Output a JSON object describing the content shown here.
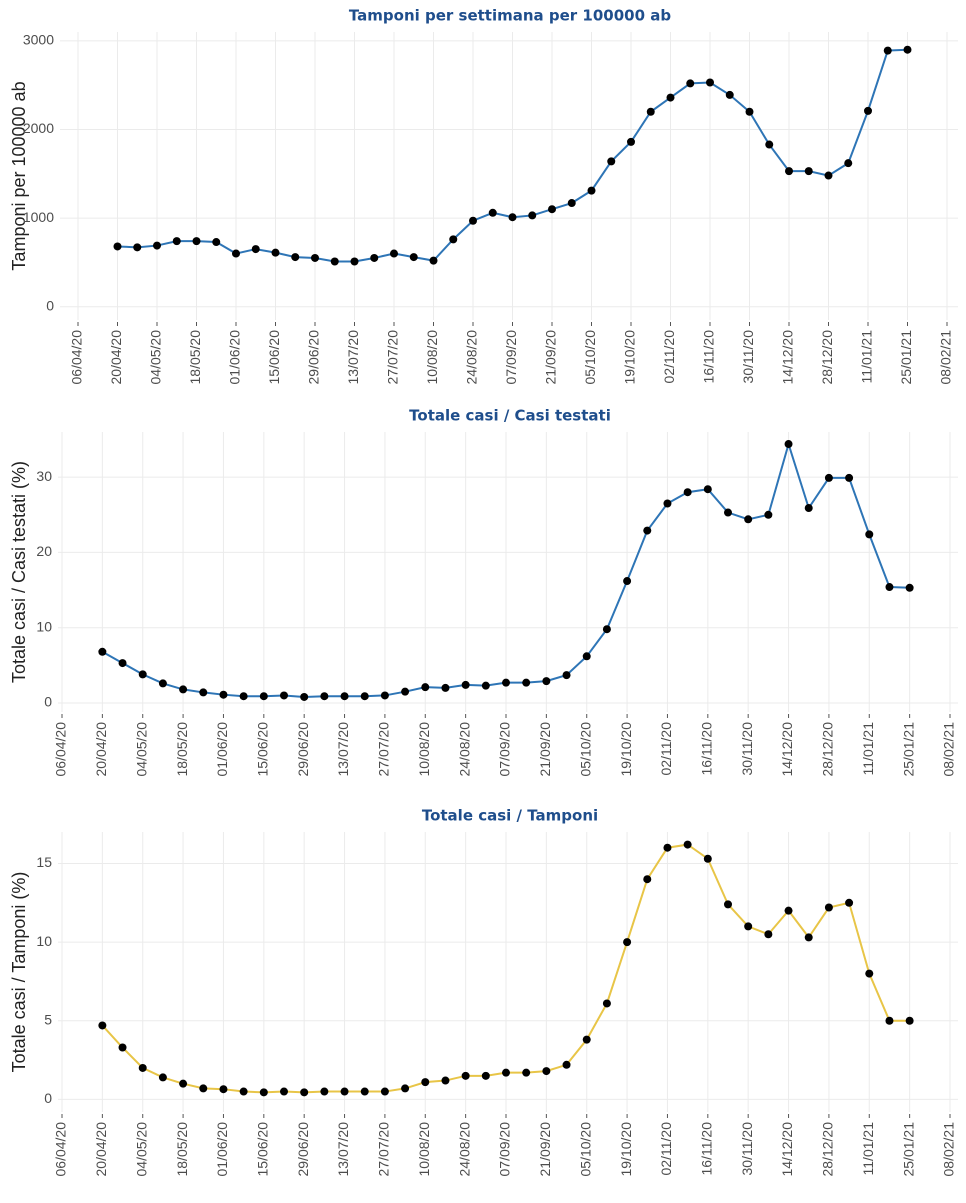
{
  "chart_data": [
    {
      "type": "line",
      "title": "Tamponi per settimana per 100000 ab",
      "y_label": "Tamponi per 100000 ab",
      "x": [
        "20/04/20",
        "27/04/20",
        "04/05/20",
        "11/05/20",
        "18/05/20",
        "25/05/20",
        "01/06/20",
        "08/06/20",
        "15/06/20",
        "22/06/20",
        "29/06/20",
        "06/07/20",
        "13/07/20",
        "20/07/20",
        "27/07/20",
        "03/08/20",
        "10/08/20",
        "17/08/20",
        "24/08/20",
        "31/08/20",
        "07/09/20",
        "14/09/20",
        "21/09/20",
        "28/09/20",
        "05/10/20",
        "12/10/20",
        "19/10/20",
        "26/10/20",
        "02/11/20",
        "09/11/20",
        "16/11/20",
        "23/11/20",
        "30/11/20",
        "07/12/20",
        "14/12/20",
        "21/12/20",
        "28/12/20",
        "04/01/21",
        "11/01/21",
        "18/01/21",
        "25/01/21"
      ],
      "series": [
        {
          "color": "#2e75b6",
          "values": [
            680,
            670,
            690,
            740,
            740,
            730,
            600,
            650,
            610,
            560,
            550,
            510,
            510,
            550,
            600,
            560,
            520,
            760,
            970,
            1060,
            1010,
            1030,
            1100,
            1170,
            1310,
            1640,
            1860,
            2200,
            2360,
            2520,
            2530,
            2390,
            2200,
            1830,
            1530,
            1530,
            1480,
            1620,
            2210,
            2890,
            2900
          ]
        }
      ],
      "xlim": [
        "06/04/20",
        "08/02/21"
      ],
      "xticks": [
        "06/04/20",
        "20/04/20",
        "04/05/20",
        "18/05/20",
        "01/06/20",
        "15/06/20",
        "29/06/20",
        "13/07/20",
        "27/07/20",
        "10/08/20",
        "24/08/20",
        "07/09/20",
        "21/09/20",
        "05/10/20",
        "19/10/20",
        "02/11/20",
        "16/11/20",
        "30/11/20",
        "14/12/20",
        "28/12/20",
        "11/01/21",
        "25/01/21",
        "08/02/21"
      ],
      "ylim": [
        -150,
        3100
      ],
      "yticks": [
        0,
        1000,
        2000,
        3000
      ],
      "grid": true
    },
    {
      "type": "line",
      "title": "Totale casi / Casi testati",
      "y_label": "Totale casi / Casi testati (%)",
      "x": [
        "20/04/20",
        "27/04/20",
        "04/05/20",
        "11/05/20",
        "18/05/20",
        "25/05/20",
        "01/06/20",
        "08/06/20",
        "15/06/20",
        "22/06/20",
        "29/06/20",
        "06/07/20",
        "13/07/20",
        "20/07/20",
        "27/07/20",
        "03/08/20",
        "10/08/20",
        "17/08/20",
        "24/08/20",
        "31/08/20",
        "07/09/20",
        "14/09/20",
        "21/09/20",
        "28/09/20",
        "05/10/20",
        "12/10/20",
        "19/10/20",
        "26/10/20",
        "02/11/20",
        "09/11/20",
        "16/11/20",
        "23/11/20",
        "30/11/20",
        "07/12/20",
        "14/12/20",
        "21/12/20",
        "28/12/20",
        "04/01/21",
        "11/01/21",
        "18/01/21",
        "25/01/21"
      ],
      "series": [
        {
          "color": "#2e75b6",
          "values": [
            6.8,
            5.3,
            3.8,
            2.6,
            1.8,
            1.4,
            1.1,
            0.9,
            0.9,
            1.0,
            0.8,
            0.9,
            0.9,
            0.9,
            1.0,
            1.5,
            2.1,
            2.0,
            2.4,
            2.3,
            2.7,
            2.7,
            2.9,
            3.7,
            6.2,
            9.8,
            16.2,
            22.9,
            26.5,
            28.0,
            28.4,
            25.3,
            24.4,
            25.0,
            34.4,
            25.9,
            29.9,
            29.9,
            22.4,
            15.4,
            15.3
          ]
        }
      ],
      "xlim": [
        "06/04/20",
        "08/02/21"
      ],
      "xticks": [
        "06/04/20",
        "20/04/20",
        "04/05/20",
        "18/05/20",
        "01/06/20",
        "15/06/20",
        "29/06/20",
        "13/07/20",
        "27/07/20",
        "10/08/20",
        "24/08/20",
        "07/09/20",
        "21/09/20",
        "05/10/20",
        "19/10/20",
        "02/11/20",
        "16/11/20",
        "30/11/20",
        "14/12/20",
        "28/12/20",
        "11/01/21",
        "25/01/21",
        "08/02/21"
      ],
      "ylim": [
        -1.2,
        36
      ],
      "yticks": [
        0,
        10,
        20,
        30
      ],
      "grid": true
    },
    {
      "type": "line",
      "title": "Totale casi / Tamponi",
      "y_label": "Totale casi / Tamponi (%)",
      "x": [
        "20/04/20",
        "27/04/20",
        "04/05/20",
        "11/05/20",
        "18/05/20",
        "25/05/20",
        "01/06/20",
        "08/06/20",
        "15/06/20",
        "22/06/20",
        "29/06/20",
        "06/07/20",
        "13/07/20",
        "20/07/20",
        "27/07/20",
        "03/08/20",
        "10/08/20",
        "17/08/20",
        "24/08/20",
        "31/08/20",
        "07/09/20",
        "14/09/20",
        "21/09/20",
        "28/09/20",
        "05/10/20",
        "12/10/20",
        "19/10/20",
        "26/10/20",
        "02/11/20",
        "09/11/20",
        "16/11/20",
        "23/11/20",
        "30/11/20",
        "07/12/20",
        "14/12/20",
        "21/12/20",
        "28/12/20",
        "04/01/21",
        "11/01/21",
        "18/01/21",
        "25/01/21"
      ],
      "series": [
        {
          "color": "#e8c547",
          "values": [
            4.7,
            3.3,
            2.0,
            1.4,
            1.0,
            0.7,
            0.65,
            0.5,
            0.45,
            0.5,
            0.45,
            0.5,
            0.5,
            0.5,
            0.5,
            0.7,
            1.1,
            1.2,
            1.5,
            1.5,
            1.7,
            1.7,
            1.8,
            2.2,
            3.8,
            6.1,
            10.0,
            14.0,
            16.0,
            16.2,
            15.3,
            12.4,
            11.0,
            10.5,
            12.0,
            10.3,
            12.2,
            12.5,
            8.0,
            5.0,
            5.0
          ]
        }
      ],
      "xlim": [
        "06/04/20",
        "08/02/21"
      ],
      "xticks": [
        "06/04/20",
        "20/04/20",
        "04/05/20",
        "18/05/20",
        "01/06/20",
        "15/06/20",
        "29/06/20",
        "13/07/20",
        "27/07/20",
        "10/08/20",
        "24/08/20",
        "07/09/20",
        "21/09/20",
        "05/10/20",
        "19/10/20",
        "02/11/20",
        "16/11/20",
        "30/11/20",
        "14/12/20",
        "28/12/20",
        "11/01/21",
        "25/01/21",
        "08/02/21"
      ],
      "ylim": [
        -0.8,
        17
      ],
      "yticks": [
        0,
        5,
        10,
        15
      ],
      "grid": true
    }
  ]
}
